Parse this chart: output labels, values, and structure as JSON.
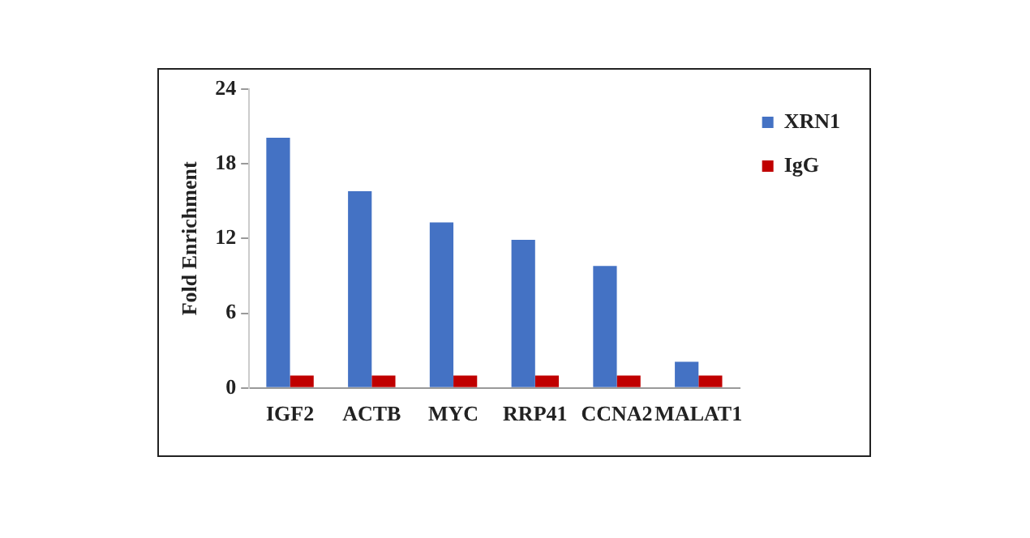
{
  "chart_data": {
    "type": "bar",
    "ylabel": "Fold Enrichment",
    "categories": [
      "IGF2",
      "ACTB",
      "MYC",
      "RRP41",
      "CCNA2",
      "MALAT1"
    ],
    "series": [
      {
        "name": "XRN1",
        "color": "#4472c4",
        "values": [
          20.1,
          15.8,
          13.3,
          11.9,
          9.8,
          2.1
        ]
      },
      {
        "name": "IgG",
        "color": "#c00000",
        "values": [
          1,
          1,
          1,
          1,
          1,
          1
        ]
      }
    ],
    "ylim": [
      0,
      24
    ],
    "yticks": [
      0,
      6,
      12,
      18,
      24
    ],
    "grid": false,
    "legend": "top right"
  }
}
